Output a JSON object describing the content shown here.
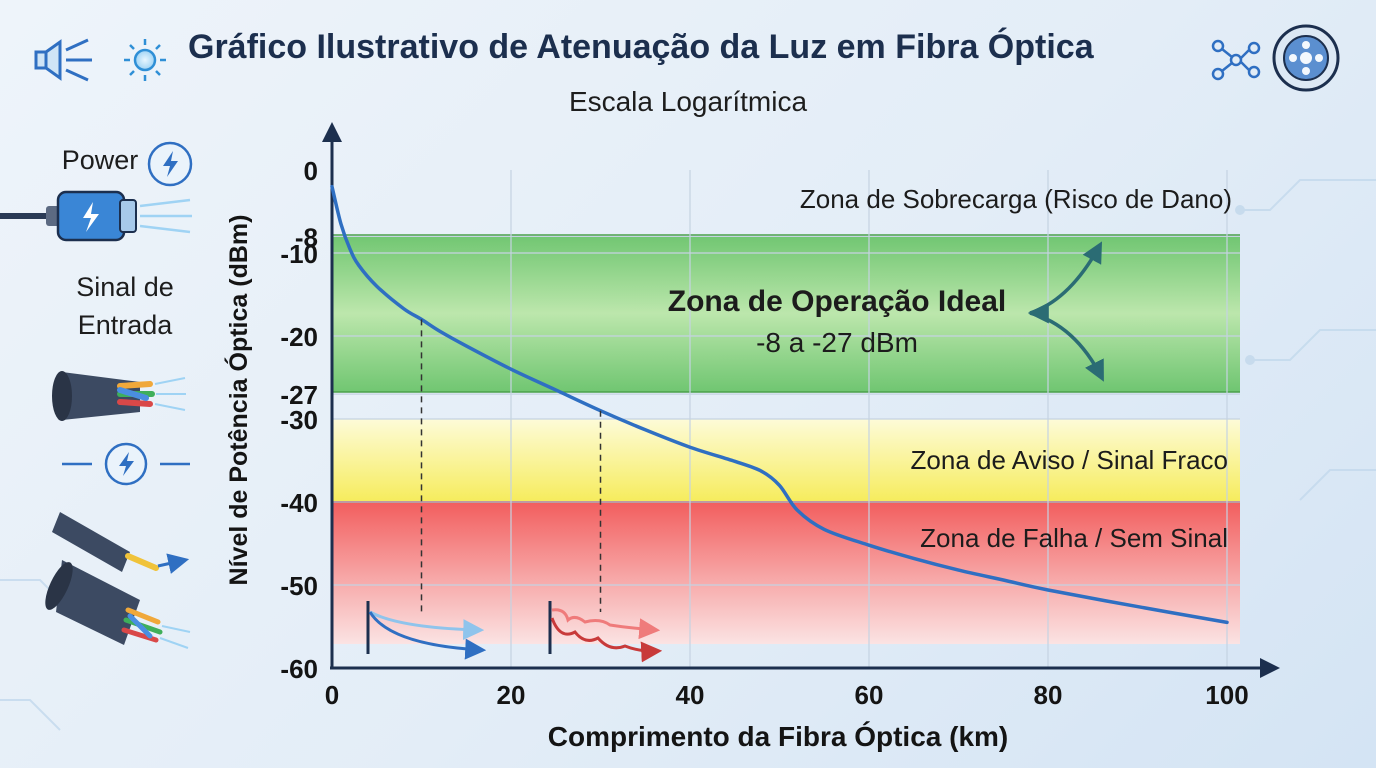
{
  "header": {
    "title": "Gráfico Ilustrativo de Atenuação da Luz em Fibra Óptica",
    "subtitle": "Escala Logarítmica",
    "icons": [
      "speaker-icon",
      "sun-icon",
      "network-icon",
      "fiber-connector-icon"
    ]
  },
  "sidebar": {
    "power_label": "Power",
    "input_label_line1": "Sinal de",
    "input_label_line2": "Entrada",
    "icons": [
      "lightning-icon",
      "power-plug-icon",
      "fiber-cable-icon",
      "lightning-icon",
      "fiber-cable-icon"
    ]
  },
  "chart_data": {
    "type": "line",
    "title": "Gráfico Ilustrativo de Atenuação da Luz em Fibra Óptica",
    "subtitle": "Escala Logarítmica",
    "xlabel": "Comprimento da Fibra Óptica (km)",
    "ylabel": "Nível de Potência Óptica (dBm)",
    "xlim": [
      0,
      100
    ],
    "ylim": [
      -60,
      0
    ],
    "x_ticks": [
      0,
      20,
      40,
      60,
      80,
      100
    ],
    "y_ticks": [
      0,
      -8,
      -10,
      -20,
      -27,
      -30,
      -40,
      -50,
      -60
    ],
    "grid": true,
    "series": [
      {
        "color": "#2f6fc2",
        "x": [
          0,
          1,
          2,
          3,
          5,
          8,
          10,
          12,
          15,
          20,
          25,
          30,
          35,
          40,
          45,
          48,
          50,
          52,
          55,
          60,
          65,
          70,
          75,
          80,
          90,
          100
        ],
        "y": [
          -2,
          -6.5,
          -9.5,
          -11.5,
          -14,
          -16.7,
          -18,
          -19.4,
          -21.2,
          -24,
          -26.5,
          -29,
          -31.3,
          -33.4,
          -35.1,
          -36.3,
          -38,
          -41,
          -43.3,
          -45.2,
          -46.8,
          -48.2,
          -49.4,
          -50.6,
          -52.6,
          -54.5
        ]
      }
    ],
    "zones": [
      {
        "label": "Zona de Sobrecarga (Risco de Dano)",
        "from": 0,
        "to": -8
      },
      {
        "label": "Zona de Operação Ideal",
        "sublabel": "-8 a -27 dBm",
        "from": -8,
        "to": -27,
        "color": "#6cc86a"
      },
      {
        "label": "Zona de Aviso / Sinal Fraco",
        "from": -30,
        "to": -40,
        "color": "#f7ef6e"
      },
      {
        "label": "Zona de Falha / Sem Sinal",
        "from": -40,
        "to": -56,
        "color": "#f46a6a"
      }
    ],
    "markers": [
      {
        "x": 10,
        "y": -18
      },
      {
        "x": 30,
        "y": -29
      }
    ]
  }
}
